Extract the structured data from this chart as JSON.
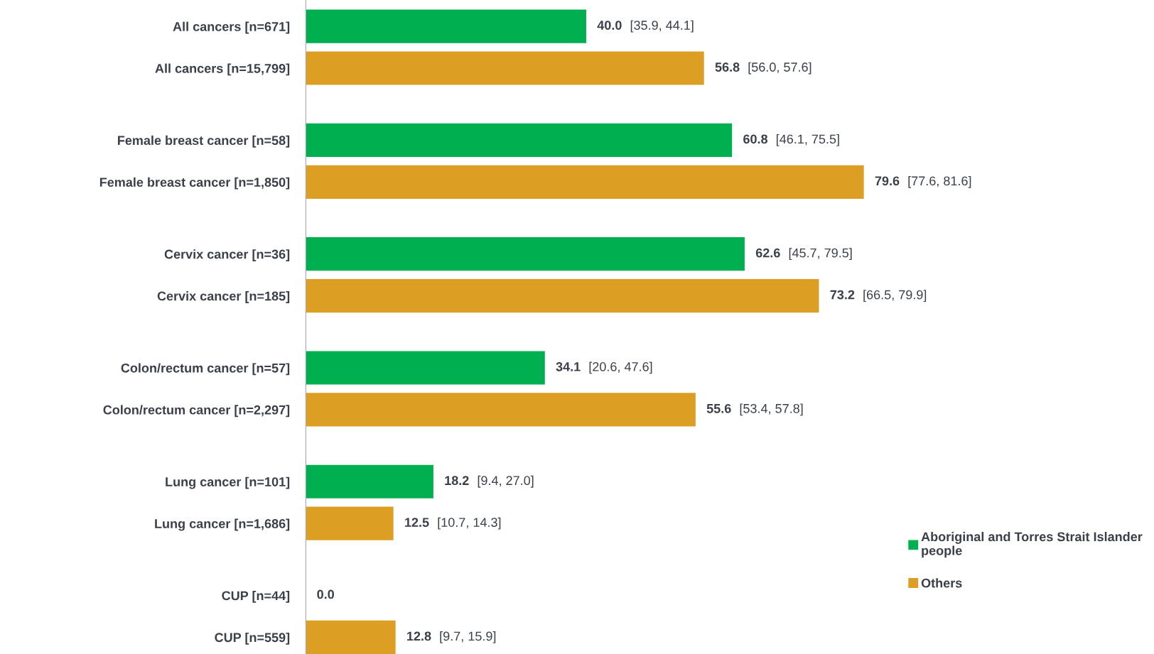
{
  "chart_data": {
    "type": "bar",
    "orientation": "horizontal",
    "legend": "bottom right",
    "categories": [
      "All cancers [n=671]",
      "All cancers [n=15,799]",
      "Female breast cancer [n=58]",
      "Female breast cancer [n=1,850]",
      "Cervix cancer [n=36]",
      "Cervix cancer [n=185]",
      "Colon/rectum cancer [n=57]",
      "Colon/rectum cancer [n=2,297]",
      "Lung cancer [n=101]",
      "Lung cancer [n=1,686]",
      "CUP [n=44]",
      "CUP [n=559]"
    ],
    "series": [
      {
        "name": "Aboriginal and Torres Strait Islander\npeople",
        "color": "#00b050",
        "values": [
          40.0,
          null,
          60.8,
          null,
          62.6,
          null,
          34.1,
          null,
          18.2,
          null,
          0.0,
          null
        ],
        "value_labels": [
          "40.0 [35.9, 44.1]",
          null,
          "60.8 [46.1, 75.5]",
          null,
          "62.6 [45.7, 79.5]",
          null,
          "34.1 [20.6, 47.6]",
          null,
          "18.2 [9.4, 27.0]",
          null,
          "0.0",
          null
        ]
      },
      {
        "name": "Others",
        "color": "#dc9f24",
        "values": [
          null,
          56.8,
          null,
          79.6,
          null,
          73.2,
          null,
          55.6,
          null,
          12.5,
          null,
          12.8
        ],
        "value_labels": [
          null,
          "56.8 [56.0, 57.6]",
          null,
          "79.6 [77.6, 81.6]",
          null,
          "73.2 [66.5, 79.9]",
          null,
          "55.6 [53.4, 57.8]",
          null,
          "12.5 [10.7, 14.3]",
          null,
          "12.8 [9.7, 15.9]"
        ]
      }
    ]
  }
}
